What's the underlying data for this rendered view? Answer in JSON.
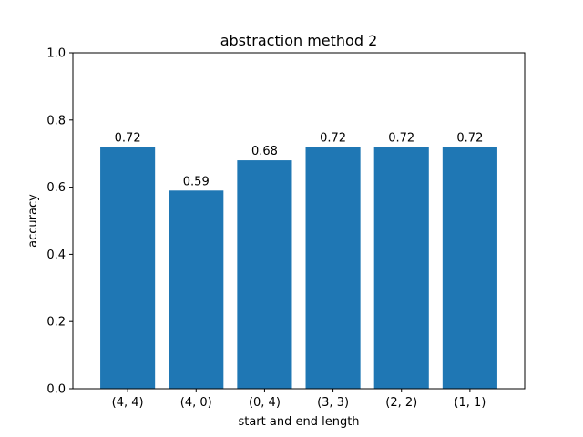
{
  "chart_data": {
    "type": "bar",
    "title": "abstraction method 2",
    "xlabel": "start and end length",
    "ylabel": "accuracy",
    "categories": [
      "(4, 4)",
      "(4, 0)",
      "(0, 4)",
      "(3, 3)",
      "(2, 2)",
      "(1, 1)"
    ],
    "values": [
      0.72,
      0.59,
      0.68,
      0.72,
      0.72,
      0.72
    ],
    "data_labels": [
      "0.72",
      "0.59",
      "0.68",
      "0.72",
      "0.72",
      "0.72"
    ],
    "ylim": [
      0,
      1.0
    ],
    "yticks": [
      0.0,
      0.2,
      0.4,
      0.6,
      0.8,
      1.0
    ],
    "ytick_labels": [
      "0.0",
      "0.2",
      "0.4",
      "0.6",
      "0.8",
      "1.0"
    ],
    "bar_color": "#1f77b4",
    "grid": false,
    "legend": "none"
  }
}
